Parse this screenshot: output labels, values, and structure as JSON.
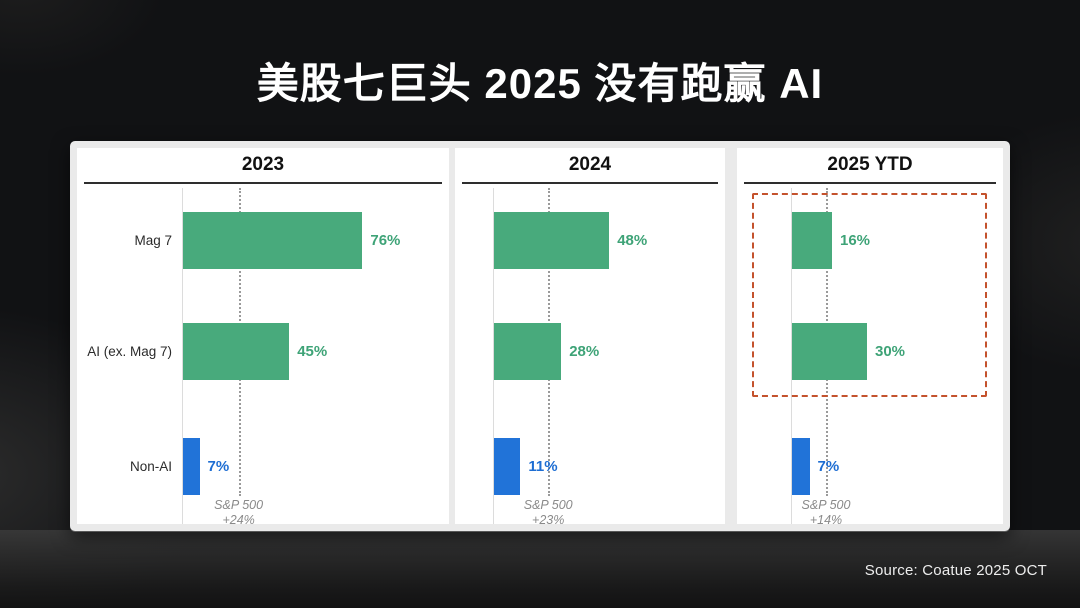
{
  "header": {
    "title": "美股七巨头 2025 没有跑赢 AI"
  },
  "footer": {
    "source": "Source: Coatue 2025 OCT"
  },
  "colors": {
    "green_bar": "#48aa7c",
    "green_text": "#3ea377",
    "blue_bar": "#2173d8",
    "blue_text": "#1e6ed3",
    "highlight_box": "#c4522d",
    "background": "#111214"
  },
  "chart_data": [
    {
      "type": "bar",
      "orientation": "horizontal",
      "title": "2023",
      "categories": [
        "Mag 7",
        "AI (ex. Mag 7)",
        "Non-AI"
      ],
      "values": [
        76,
        45,
        7
      ],
      "value_labels": [
        "76%",
        "45%",
        "7%"
      ],
      "series_colors": [
        "green",
        "green",
        "blue"
      ],
      "benchmark": {
        "name": "S&P 500",
        "label": "+24%",
        "value": 24
      },
      "show_category_labels": true,
      "highlighted": false,
      "xlim": [
        0,
        110
      ],
      "grid": false
    },
    {
      "type": "bar",
      "orientation": "horizontal",
      "title": "2024",
      "categories": [
        "Mag 7",
        "AI (ex. Mag 7)",
        "Non-AI"
      ],
      "values": [
        48,
        28,
        11
      ],
      "value_labels": [
        "48%",
        "28%",
        "11%"
      ],
      "series_colors": [
        "green",
        "green",
        "blue"
      ],
      "benchmark": {
        "name": "S&P 500",
        "label": "+23%",
        "value": 23
      },
      "show_category_labels": false,
      "highlighted": false,
      "xlim": [
        0,
        95
      ],
      "grid": false
    },
    {
      "type": "bar",
      "orientation": "horizontal",
      "title": "2025 YTD",
      "categories": [
        "Mag 7",
        "AI (ex. Mag 7)",
        "Non-AI"
      ],
      "values": [
        16,
        30,
        7
      ],
      "value_labels": [
        "16%",
        "30%",
        "7%"
      ],
      "series_colors": [
        "green",
        "green",
        "blue"
      ],
      "benchmark": {
        "name": "S&P 500",
        "label": "+14%",
        "value": 14
      },
      "show_category_labels": false,
      "highlighted": true,
      "xlim": [
        0,
        85
      ],
      "grid": false
    }
  ]
}
